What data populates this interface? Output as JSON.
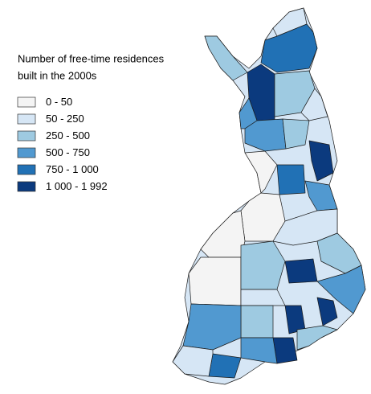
{
  "title": [
    "Number of free-time residences",
    "built in the 2000s"
  ],
  "legend": [
    {
      "label": "0 - 50",
      "color": "#f4f4f4"
    },
    {
      "label": "50 - 250",
      "color": "#d6e6f5"
    },
    {
      "label": "250 - 500",
      "color": "#9ecae1"
    },
    {
      "label": "500 - 750",
      "color": "#5199d0"
    },
    {
      "label": "750 - 1 000",
      "color": "#2171b5"
    },
    {
      "label": "1 000 - 1 992",
      "color": "#0b3a7e"
    }
  ]
}
